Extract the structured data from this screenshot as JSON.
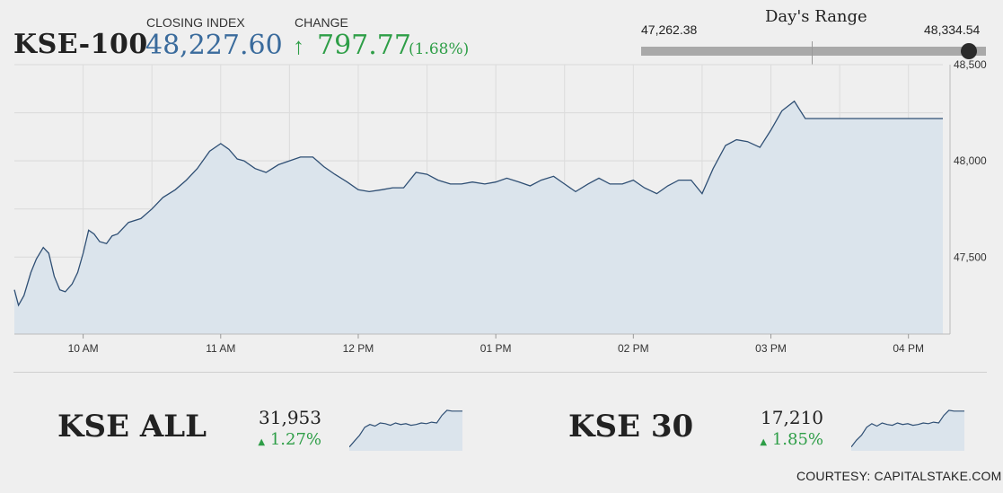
{
  "header": {
    "index_name": "KSE-100",
    "closing_label": "CLOSING INDEX",
    "closing_value": "48,227.60",
    "change_label": "CHANGE",
    "change_arrow": "↑",
    "change_value": "797.77",
    "change_pct": "(1.68%)"
  },
  "day_range": {
    "title": "Day's Range",
    "low": "47,262.38",
    "high": "48,334.54",
    "marker_fraction": 0.95
  },
  "mini_indices": [
    {
      "name": "KSE ALL",
      "value": "31,953",
      "arrow": "▲",
      "change": "1.27%"
    },
    {
      "name": "KSE 30",
      "value": "17,210",
      "arrow": "▲",
      "change": "1.85%"
    }
  ],
  "courtesy": "COURTESY: CAPITALSTAKE.COM",
  "colors": {
    "line": "#2f4f74",
    "fill": "#dbe4ec",
    "up": "#2e9e47",
    "closing": "#3a6b9c"
  },
  "chart_data": [
    {
      "type": "area",
      "title": "",
      "x_tick_labels": [
        "10 AM",
        "11 AM",
        "12 PM",
        "01 PM",
        "02 PM",
        "03 PM",
        "04 PM"
      ],
      "y_tick_labels": [
        "47,500",
        "48,000",
        "48,500"
      ],
      "ylim": [
        47100,
        48500
      ],
      "xlim": [
        9.5,
        16.25
      ],
      "grid": true,
      "series": [
        {
          "x": [
            9.5,
            9.53,
            9.57,
            9.62,
            9.66,
            9.71,
            9.75,
            9.79,
            9.83,
            9.87,
            9.92,
            9.96,
            10.0,
            10.04,
            10.08,
            10.12,
            10.17,
            10.21,
            10.25,
            10.33,
            10.42,
            10.5,
            10.58,
            10.67,
            10.75,
            10.83,
            10.92,
            11.0,
            11.06,
            11.12,
            11.17,
            11.25,
            11.33,
            11.42,
            11.5,
            11.58,
            11.67,
            11.75,
            11.83,
            11.92,
            12.0,
            12.08,
            12.17,
            12.25,
            12.33,
            12.42,
            12.5,
            12.58,
            12.67,
            12.75,
            12.83,
            12.92,
            13.0,
            13.08,
            13.17,
            13.25,
            13.33,
            13.42,
            13.5,
            13.58,
            13.67,
            13.75,
            13.83,
            13.92,
            14.0,
            14.08,
            14.17,
            14.25,
            14.33,
            14.42,
            14.5,
            14.58,
            14.67,
            14.75,
            14.83,
            14.92,
            15.0,
            15.08,
            15.17,
            15.25,
            15.33,
            15.42,
            15.5,
            15.75,
            16.0,
            16.25
          ],
          "y": [
            47330,
            47250,
            47300,
            47420,
            47490,
            47550,
            47520,
            47400,
            47330,
            47320,
            47360,
            47420,
            47520,
            47640,
            47620,
            47580,
            47570,
            47610,
            47620,
            47680,
            47700,
            47750,
            47810,
            47850,
            47900,
            47960,
            48050,
            48090,
            48060,
            48010,
            48000,
            47960,
            47940,
            47980,
            48000,
            48020,
            48020,
            47970,
            47930,
            47890,
            47850,
            47840,
            47850,
            47860,
            47860,
            47940,
            47930,
            47900,
            47880,
            47880,
            47890,
            47880,
            47890,
            47910,
            47890,
            47870,
            47900,
            47920,
            47880,
            47840,
            47880,
            47910,
            47880,
            47880,
            47900,
            47860,
            47830,
            47870,
            47900,
            47900,
            47830,
            47960,
            48080,
            48110,
            48100,
            48070,
            48160,
            48260,
            48310,
            48220,
            48220,
            48220,
            48220,
            48220,
            48220,
            48220
          ]
        }
      ]
    },
    {
      "type": "area",
      "title": "KSE ALL",
      "series": [
        {
          "y": [
            0.05,
            0.2,
            0.35,
            0.55,
            0.62,
            0.58,
            0.66,
            0.64,
            0.6,
            0.66,
            0.62,
            0.64,
            0.6,
            0.62,
            0.66,
            0.64,
            0.68,
            0.66,
            0.85,
            0.98,
            0.96,
            0.96,
            0.96
          ]
        }
      ]
    },
    {
      "type": "area",
      "title": "KSE 30",
      "series": [
        {
          "y": [
            0.05,
            0.22,
            0.35,
            0.55,
            0.64,
            0.58,
            0.66,
            0.62,
            0.6,
            0.66,
            0.62,
            0.64,
            0.6,
            0.62,
            0.66,
            0.64,
            0.68,
            0.66,
            0.85,
            0.98,
            0.96,
            0.96,
            0.96
          ]
        }
      ]
    }
  ]
}
